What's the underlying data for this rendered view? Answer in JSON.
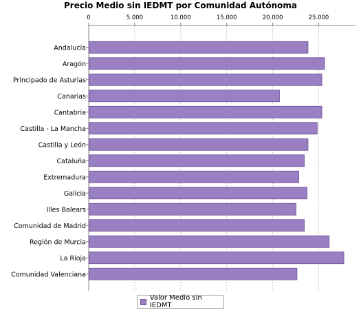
{
  "chart_data": {
    "type": "bar",
    "orientation": "horizontal",
    "title": "Precio Medio sin IEDMT por Comunidad Autónoma",
    "categories": [
      "Andalucía",
      "Aragón",
      "Principado de Asturias",
      "Canarias",
      "Cantabria",
      "Castilla - La Mancha",
      "Castilla y León",
      "Cataluña",
      "Extremadura",
      "Galicia",
      "Illes Balears",
      "Comunidad de Madrid",
      "Región de Murcia",
      "La Rioja",
      "Comunidad Valenciana"
    ],
    "series": [
      {
        "name": "Valor Medio sin IEDMT",
        "values": [
          23800,
          25600,
          25300,
          20700,
          25300,
          24800,
          23800,
          23400,
          22800,
          23700,
          22500,
          23400,
          26100,
          27700,
          22600
        ]
      }
    ],
    "xlim": [
      0,
      29000
    ],
    "x_ticks": [
      "0",
      "5.000",
      "10.000",
      "15.000",
      "20.000",
      "25.000"
    ],
    "x_tick_values": [
      0,
      5000,
      10000,
      15000,
      20000,
      25000
    ],
    "axis_position": "top",
    "grid": true,
    "legend_position": "bottom",
    "colors": {
      "bar": "#9b7fc3",
      "bar_border": "#6a4f96",
      "grid": "#c8c8c8",
      "axis": "#808080"
    }
  }
}
